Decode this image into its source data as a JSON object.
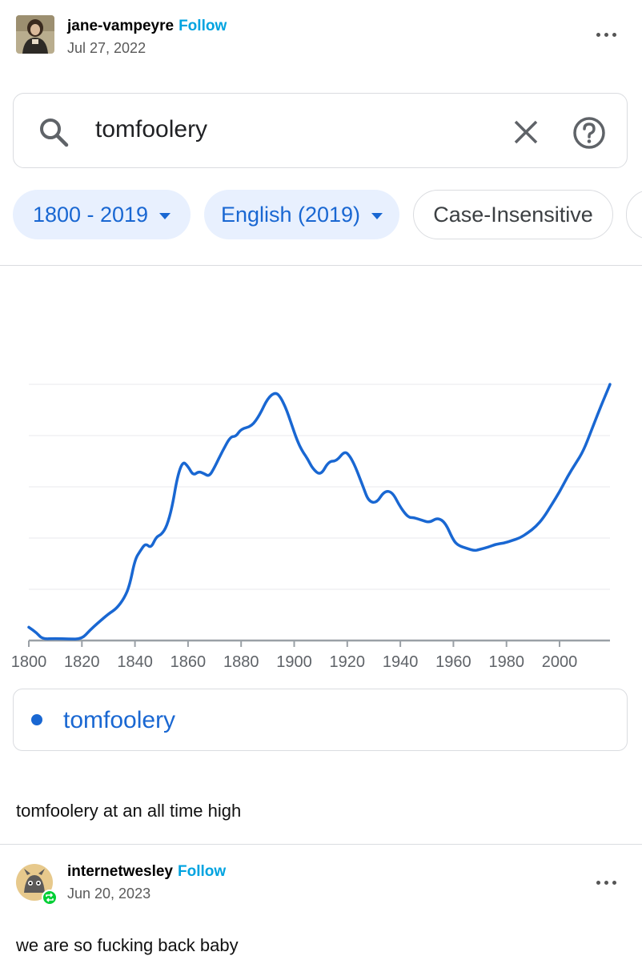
{
  "post1": {
    "username": "jane-vampeyre",
    "follow_label": "Follow",
    "date": "Jul 27, 2022",
    "caption": "tomfoolery at an all time high"
  },
  "ngram": {
    "search_query": "tomfoolery",
    "chips": [
      {
        "label": "1800 - 2019"
      },
      {
        "label": "English (2019)"
      },
      {
        "label": "Case-Insensitive"
      }
    ],
    "legend_label": "tomfoolery",
    "accent_color": "#1967d2"
  },
  "post2": {
    "username": "internetwesley",
    "follow_label": "Follow",
    "date": "Jun 20, 2023",
    "caption": "we are so fucking back baby"
  },
  "chart_data": {
    "type": "line",
    "xlim": [
      1800,
      2019
    ],
    "x_ticks": [
      1800,
      1820,
      1840,
      1860,
      1880,
      1900,
      1920,
      1940,
      1960,
      1980,
      2000
    ],
    "ylim": [
      0,
      5
    ],
    "grid": true,
    "series": [
      {
        "name": "tomfoolery",
        "color": "#1967d2",
        "x": [
          1800,
          1803,
          1805,
          1810,
          1815,
          1820,
          1823,
          1826,
          1830,
          1833,
          1836,
          1838,
          1840,
          1842,
          1844,
          1846,
          1848,
          1850,
          1852,
          1854,
          1856,
          1858,
          1860,
          1862,
          1864,
          1866,
          1868,
          1870,
          1873,
          1876,
          1878,
          1880,
          1884,
          1887,
          1890,
          1893,
          1895,
          1897,
          1899,
          1901,
          1903,
          1905,
          1907,
          1910,
          1913,
          1916,
          1919,
          1921,
          1923,
          1926,
          1928,
          1931,
          1934,
          1937,
          1940,
          1943,
          1945,
          1948,
          1951,
          1954,
          1957,
          1960,
          1962,
          1965,
          1968,
          1970,
          1973,
          1976,
          1979,
          1982,
          1985,
          1988,
          1991,
          1994,
          1997,
          2000,
          2003,
          2006,
          2009,
          2012,
          2015,
          2019
        ],
        "values": [
          0.26,
          0.15,
          0.03,
          0.04,
          0.03,
          0.03,
          0.2,
          0.34,
          0.52,
          0.62,
          0.83,
          1.08,
          1.58,
          1.75,
          1.9,
          1.8,
          2.02,
          2.07,
          2.23,
          2.6,
          3.2,
          3.5,
          3.4,
          3.22,
          3.3,
          3.26,
          3.2,
          3.38,
          3.7,
          3.98,
          3.98,
          4.13,
          4.18,
          4.4,
          4.73,
          4.85,
          4.74,
          4.52,
          4.22,
          3.92,
          3.7,
          3.55,
          3.35,
          3.22,
          3.5,
          3.5,
          3.7,
          3.6,
          3.4,
          3.0,
          2.72,
          2.68,
          2.92,
          2.9,
          2.6,
          2.4,
          2.4,
          2.35,
          2.3,
          2.4,
          2.3,
          1.95,
          1.85,
          1.8,
          1.75,
          1.78,
          1.82,
          1.88,
          1.9,
          1.95,
          2.0,
          2.1,
          2.22,
          2.4,
          2.65,
          2.9,
          3.2,
          3.45,
          3.7,
          4.1,
          4.5,
          5.0
        ]
      }
    ]
  }
}
